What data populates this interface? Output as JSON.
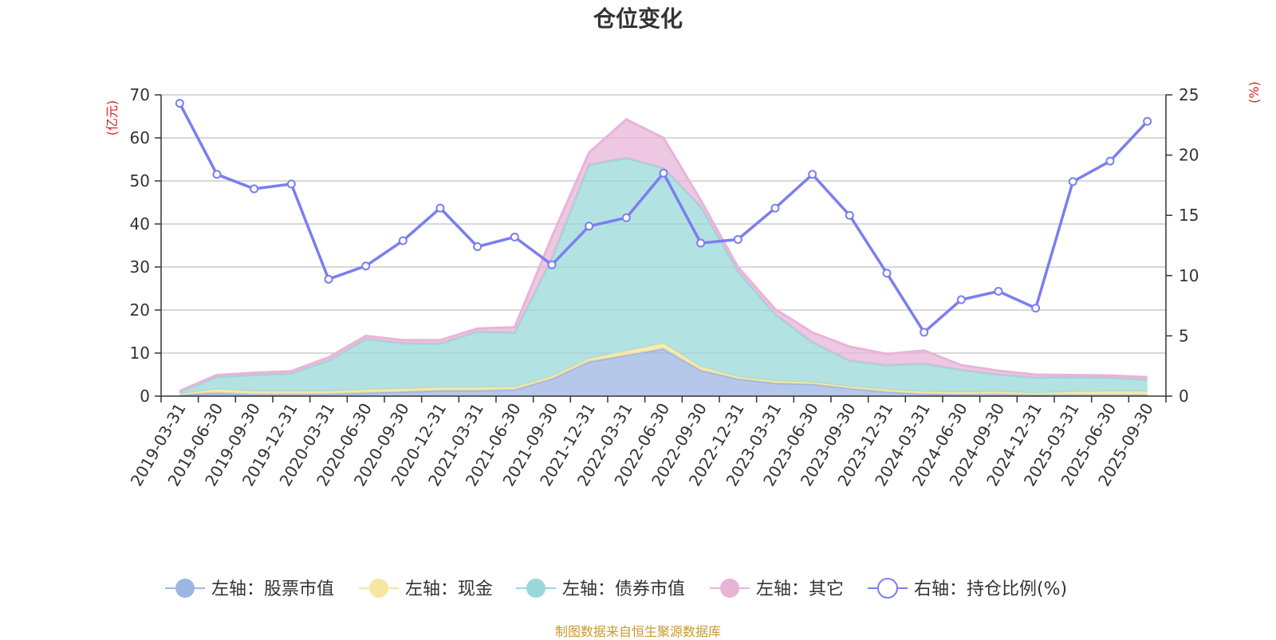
{
  "chart_data": {
    "type": "area",
    "title": "仓位变化",
    "left_axis_unit": "(亿元)",
    "right_axis_unit": "(%)",
    "ylim_left": [
      0,
      70
    ],
    "yticks_left": [
      0,
      10,
      20,
      30,
      40,
      50,
      60,
      70
    ],
    "ylim_right": [
      0,
      25
    ],
    "yticks_right": [
      0,
      5,
      10,
      15,
      20,
      25
    ],
    "categories": [
      "2019-03-31",
      "2019-06-30",
      "2019-09-30",
      "2019-12-31",
      "2020-03-31",
      "2020-06-30",
      "2020-09-30",
      "2020-12-31",
      "2021-03-31",
      "2021-06-30",
      "2021-09-30",
      "2021-12-31",
      "2022-03-31",
      "2022-06-30",
      "2022-09-30",
      "2022-12-31",
      "2023-03-31",
      "2023-06-30",
      "2023-09-30",
      "2023-12-31",
      "2024-03-31",
      "2024-06-30",
      "2024-09-30",
      "2024-12-31",
      "2025-03-31",
      "2025-06-30",
      "2025-09-30"
    ],
    "series": [
      {
        "name": "左轴：股票市值",
        "axis": "left",
        "stack": true,
        "color": "#9db6e1",
        "values": [
          0.3,
          0.8,
          0.4,
          0.4,
          0.5,
          0.8,
          1.0,
          1.3,
          1.3,
          1.5,
          4.0,
          8.0,
          9.5,
          11.0,
          6.0,
          4.0,
          3.0,
          2.8,
          1.8,
          1.0,
          0.5,
          0.4,
          0.4,
          0.3,
          0.3,
          0.3,
          0.3
        ]
      },
      {
        "name": "左轴：现金",
        "axis": "left",
        "stack": true,
        "color": "#f7e6a0",
        "values": [
          0.2,
          0.8,
          0.7,
          0.7,
          0.6,
          0.7,
          0.7,
          0.7,
          0.7,
          0.6,
          0.6,
          0.7,
          1.0,
          1.3,
          0.8,
          0.5,
          0.5,
          0.4,
          0.4,
          0.5,
          0.5,
          0.5,
          0.6,
          0.4,
          0.7,
          0.8,
          0.8
        ]
      },
      {
        "name": "左轴：债券市值",
        "axis": "left",
        "stack": true,
        "color": "#9ad8d8",
        "values": [
          0.5,
          2.9,
          3.8,
          4.2,
          7.1,
          11.8,
          10.6,
          10.2,
          13.0,
          12.6,
          27.4,
          45.1,
          44.8,
          40.7,
          37.2,
          24.5,
          15.5,
          9.3,
          6.0,
          5.7,
          6.5,
          5.2,
          4.0,
          3.6,
          3.4,
          3.2,
          2.7
        ]
      },
      {
        "name": "左轴：其它",
        "axis": "left",
        "stack": true,
        "color": "#e8b4d8",
        "values": [
          0.2,
          0.4,
          0.5,
          0.5,
          0.8,
          0.7,
          0.7,
          0.8,
          0.7,
          1.3,
          5.0,
          2.8,
          9.0,
          7.0,
          1.5,
          1.0,
          1.2,
          2.3,
          3.3,
          2.6,
          3.1,
          1.1,
          0.9,
          0.7,
          0.5,
          0.5,
          0.6
        ]
      },
      {
        "name": "右轴：持仓比例(%)",
        "axis": "right",
        "stack": false,
        "color": "#7b7ef0",
        "values": [
          24.3,
          18.4,
          17.2,
          17.6,
          9.7,
          10.8,
          12.9,
          15.6,
          12.4,
          13.2,
          10.9,
          14.1,
          14.8,
          18.5,
          12.7,
          13.0,
          15.6,
          18.4,
          15.0,
          10.2,
          5.3,
          8.0,
          8.7,
          7.3,
          17.8,
          19.5,
          22.8
        ]
      }
    ]
  },
  "source_note": "制图数据来自恒生聚源数据库"
}
